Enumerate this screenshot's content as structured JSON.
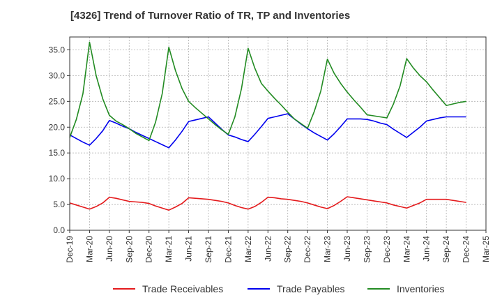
{
  "chart_data": {
    "type": "line",
    "title": "[4326]  Trend of Turnover Ratio of TR, TP and Inventories",
    "xlabel": "",
    "ylabel": "",
    "x_tick_labels": [
      "Dec-19",
      "Mar-20",
      "Jun-20",
      "Sep-20",
      "Dec-20",
      "Mar-21",
      "Jun-21",
      "Sep-21",
      "Dec-21",
      "Mar-22",
      "Jun-22",
      "Sep-22",
      "Dec-22",
      "Mar-23",
      "Jun-23",
      "Sep-23",
      "Dec-23",
      "Mar-24",
      "Jun-24",
      "Sep-24",
      "Dec-24",
      "Mar-25"
    ],
    "y_tick_labels": [
      "0.0",
      "5.0",
      "10.0",
      "15.0",
      "20.0",
      "25.0",
      "30.0",
      "35.0"
    ],
    "ylim": [
      0,
      37.5
    ],
    "grid": true,
    "legend_position": "bottom",
    "x": [
      "Dec-19",
      "Jan-20",
      "Feb-20",
      "Mar-20",
      "Apr-20",
      "May-20",
      "Jun-20",
      "Jul-20",
      "Aug-20",
      "Sep-20",
      "Oct-20",
      "Nov-20",
      "Dec-20",
      "Jan-21",
      "Feb-21",
      "Mar-21",
      "Apr-21",
      "May-21",
      "Jun-21",
      "Jul-21",
      "Aug-21",
      "Sep-21",
      "Oct-21",
      "Nov-21",
      "Dec-21",
      "Jan-22",
      "Feb-22",
      "Mar-22",
      "Apr-22",
      "May-22",
      "Jun-22",
      "Jul-22",
      "Aug-22",
      "Sep-22",
      "Oct-22",
      "Nov-22",
      "Dec-22",
      "Jan-23",
      "Feb-23",
      "Mar-23",
      "Apr-23",
      "May-23",
      "Jun-23",
      "Jul-23",
      "Aug-23",
      "Sep-23",
      "Oct-23",
      "Nov-23",
      "Dec-23",
      "Jan-24",
      "Feb-24",
      "Mar-24",
      "Apr-24",
      "May-24",
      "Jun-24",
      "Jul-24",
      "Aug-24",
      "Sep-24",
      "Oct-24",
      "Nov-24",
      "Dec-24"
    ],
    "series": [
      {
        "name": "Trade Receivables",
        "color": "#e41a1c",
        "values": [
          5.3,
          4.9,
          4.5,
          4.1,
          4.6,
          5.3,
          6.4,
          6.2,
          5.9,
          5.6,
          5.5,
          5.4,
          5.2,
          4.7,
          4.3,
          3.9,
          4.5,
          5.2,
          6.3,
          6.2,
          6.1,
          6.0,
          5.8,
          5.6,
          5.3,
          4.8,
          4.4,
          4.1,
          4.6,
          5.4,
          6.4,
          6.3,
          6.1,
          6.0,
          5.8,
          5.6,
          5.3,
          4.9,
          4.5,
          4.2,
          4.8,
          5.6,
          6.5,
          6.3,
          6.1,
          5.9,
          5.7,
          5.5,
          5.3,
          4.9,
          4.6,
          4.3,
          4.8,
          5.3,
          6.0,
          6.0,
          6.0,
          6.0,
          5.8,
          5.6,
          5.4
        ]
      },
      {
        "name": "Trade Payables",
        "color": "#0000ee",
        "values": [
          18.5,
          17.8,
          17.1,
          16.5,
          17.8,
          19.3,
          21.3,
          20.8,
          20.2,
          19.7,
          19.0,
          18.4,
          17.8,
          17.2,
          16.6,
          16.0,
          17.5,
          19.2,
          21.1,
          21.4,
          21.7,
          22.0,
          20.8,
          19.6,
          18.5,
          18.1,
          17.6,
          17.2,
          18.6,
          20.1,
          21.7,
          22.0,
          22.3,
          22.6,
          21.6,
          20.6,
          19.7,
          18.9,
          18.2,
          17.5,
          18.7,
          20.1,
          21.6,
          21.6,
          21.6,
          21.5,
          21.2,
          20.8,
          20.5,
          19.6,
          18.8,
          18.0,
          19.0,
          20.0,
          21.2,
          21.5,
          21.8,
          22.0,
          22.0,
          22.0,
          22.0
        ]
      },
      {
        "name": "Inventories",
        "color": "#228b22",
        "values": [
          18.0,
          21.5,
          26.5,
          36.5,
          30.0,
          25.5,
          22.3,
          21.2,
          20.5,
          19.7,
          18.8,
          18.1,
          17.4,
          21.0,
          26.5,
          35.5,
          31.0,
          27.5,
          25.0,
          23.8,
          22.7,
          21.6,
          20.5,
          19.5,
          18.6,
          22.0,
          27.5,
          35.3,
          31.5,
          28.5,
          27.0,
          25.6,
          24.3,
          22.9,
          21.6,
          20.7,
          19.8,
          23.0,
          27.0,
          33.2,
          30.5,
          28.5,
          26.8,
          25.3,
          23.9,
          22.4,
          22.2,
          22.0,
          21.8,
          24.5,
          28.0,
          33.3,
          31.5,
          30.0,
          28.8,
          27.2,
          25.7,
          24.2,
          24.5,
          24.8,
          25.0
        ]
      }
    ]
  }
}
